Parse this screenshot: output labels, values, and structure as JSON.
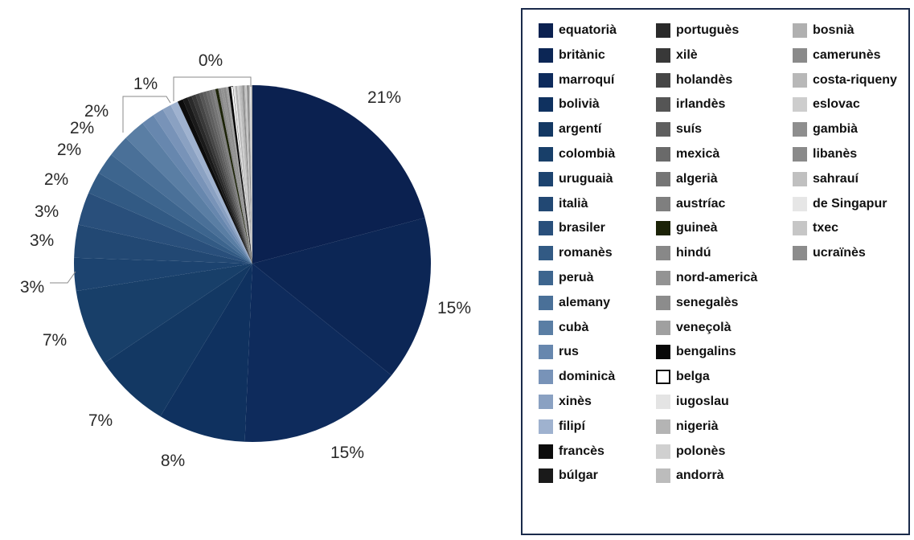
{
  "chart_data": {
    "type": "pie",
    "start_angle": "12 o'clock, clockwise",
    "slices": [
      {
        "name": "equatorià",
        "value": 21,
        "label": "21%",
        "color": "#0b2150"
      },
      {
        "name": "britànic",
        "value": 15,
        "label": "15%",
        "color": "#0c2655"
      },
      {
        "name": "marroquí",
        "value": 15,
        "label": "15%",
        "color": "#0e2b5c"
      },
      {
        "name": "bolivià",
        "value": 8,
        "label": "8%",
        "color": "#0f315f"
      },
      {
        "name": "argentí",
        "value": 7,
        "label": "7%",
        "color": "#133863"
      },
      {
        "name": "colombià",
        "value": 7,
        "label": "7%",
        "color": "#183f69"
      },
      {
        "name": "uruguaià",
        "value": 3,
        "label": "3%",
        "color": "#1c436f"
      },
      {
        "name": "italià",
        "value": 3,
        "label": "3%",
        "color": "#224873"
      },
      {
        "name": "brasiler",
        "value": 3,
        "label": "3%",
        "color": "#294f7b"
      },
      {
        "name": "romanès",
        "value": 2,
        "label": "2%",
        "color": "#325a84"
      },
      {
        "name": "peruà",
        "value": 2,
        "label": "2%",
        "color": "#3d658e"
      },
      {
        "name": "alemany",
        "value": 2,
        "label": "2%",
        "color": "#4a7098"
      },
      {
        "name": "cubà",
        "value": 2,
        "label": "2%",
        "color": "#5a7ea4"
      },
      {
        "name": "rus",
        "value": 1.2,
        "label": "",
        "color": "#6787ae"
      },
      {
        "name": "dominicà",
        "value": 1.0,
        "label": "",
        "color": "#7893b8"
      },
      {
        "name": "xinès",
        "value": 0.8,
        "label": "",
        "color": "#8aa1c2"
      },
      {
        "name": "filipí",
        "value": 0.7,
        "label": "1%",
        "color": "#9fb2cf"
      },
      {
        "name": "francès",
        "value": 0.5,
        "label": "",
        "color": "#0c0c0c"
      },
      {
        "name": "búlgar",
        "value": 0.45,
        "label": "",
        "color": "#1a1a1a"
      },
      {
        "name": "portuguès",
        "value": 0.4,
        "label": "",
        "color": "#2a2a2a"
      },
      {
        "name": "xilè",
        "value": 0.38,
        "label": "",
        "color": "#383838"
      },
      {
        "name": "holandès",
        "value": 0.35,
        "label": "",
        "color": "#464646"
      },
      {
        "name": "irlandès",
        "value": 0.33,
        "label": "",
        "color": "#555555"
      },
      {
        "name": "suís",
        "value": 0.31,
        "label": "",
        "color": "#5f5f5f"
      },
      {
        "name": "mexicà",
        "value": 0.3,
        "label": "",
        "color": "#6a6a6a"
      },
      {
        "name": "algerià",
        "value": 0.28,
        "label": "",
        "color": "#757575"
      },
      {
        "name": "austríac",
        "value": 0.27,
        "label": "",
        "color": "#7f7f7f"
      },
      {
        "name": "guineà",
        "value": 0.26,
        "label": "",
        "color": "#1c2308"
      },
      {
        "name": "hindú",
        "value": 0.25,
        "label": "",
        "color": "#888888"
      },
      {
        "name": "nord-americà",
        "value": 0.24,
        "label": "",
        "color": "#939393"
      },
      {
        "name": "senegalès",
        "value": 0.23,
        "label": "",
        "color": "#8c8c8c"
      },
      {
        "name": "veneçolà",
        "value": 0.22,
        "label": "",
        "color": "#a0a0a0"
      },
      {
        "name": "bengalins",
        "value": 0.21,
        "label": "",
        "color": "#080808"
      },
      {
        "name": "belga",
        "value": 0.2,
        "label": "",
        "color": "#ffffff",
        "outline": "#111111"
      },
      {
        "name": "iugoslau",
        "value": 0.19,
        "label": "",
        "color": "#e4e4e4"
      },
      {
        "name": "nigerià",
        "value": 0.18,
        "label": "",
        "color": "#b4b4b4"
      },
      {
        "name": "polonès",
        "value": 0.17,
        "label": "",
        "color": "#d0d0d0"
      },
      {
        "name": "andorrà",
        "value": 0.16,
        "label": "",
        "color": "#bcbcbc"
      },
      {
        "name": "bosnià",
        "value": 0.15,
        "label": "",
        "color": "#b0b0b0"
      },
      {
        "name": "camerunès",
        "value": 0.14,
        "label": "",
        "color": "#8a8a8a"
      },
      {
        "name": "costa-riqueny",
        "value": 0.13,
        "label": "",
        "color": "#b8b8b8"
      },
      {
        "name": "eslovac",
        "value": 0.12,
        "label": "",
        "color": "#cdcdcd"
      },
      {
        "name": "gambià",
        "value": 0.11,
        "label": "",
        "color": "#8e8e8e"
      },
      {
        "name": "libanès",
        "value": 0.1,
        "label": "",
        "color": "#8a8a8a"
      },
      {
        "name": "sahrauí",
        "value": 0.09,
        "label": "",
        "color": "#c0c0c0"
      },
      {
        "name": "de Singapur",
        "value": 0.08,
        "label": "",
        "color": "#e6e6e6"
      },
      {
        "name": "txec",
        "value": 0.07,
        "label": "",
        "color": "#c6c6c6"
      },
      {
        "name": "ucraïnès",
        "value": 0.06,
        "label": "0%",
        "color": "#8c8c8c"
      }
    ],
    "legend_placement": "right",
    "legend_columns": 3
  }
}
